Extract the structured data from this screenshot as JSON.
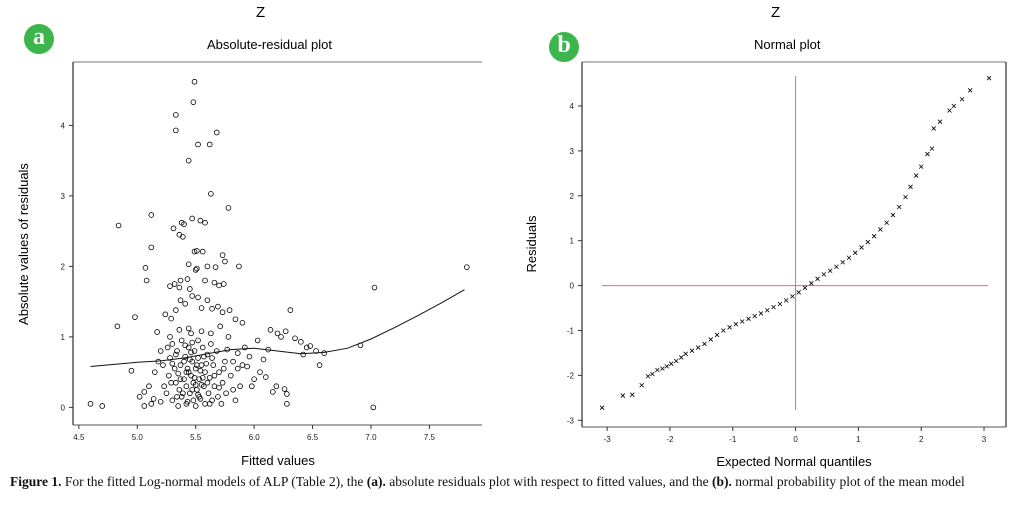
{
  "caption": {
    "label": "Figure 1.",
    "text_1": " For the fitted Log-normal models of ALP (Table 2), the ",
    "a_ref": "(a).",
    "text_2": " absolute residuals plot with respect to fitted values, and the ",
    "b_ref": "(b).",
    "text_3": " normal probability plot of the mean model"
  },
  "colors": {
    "badge": "#3cb54a",
    "refline": "#e07070",
    "marker": "#000000"
  },
  "chart_data": [
    {
      "type": "scatter",
      "panel_badge": "a",
      "supertitle": "Z",
      "title": "Absolute-residual plot",
      "xlabel": "Fitted values",
      "ylabel": "Absolute values of residuals",
      "xlim": [
        4.45,
        7.95
      ],
      "ylim": [
        -0.25,
        4.9
      ],
      "xticks": [
        "4.5",
        "5.0",
        "5.5",
        "6.0",
        "6.5",
        "7.0",
        "7.5"
      ],
      "xtick_values": [
        4.5,
        5.0,
        5.5,
        6.0,
        6.5,
        7.0,
        7.5
      ],
      "yticks": [
        "0",
        "1",
        "2",
        "3",
        "4"
      ],
      "ytick_values": [
        0,
        1,
        2,
        3,
        4
      ],
      "marker": "circle",
      "points": [
        [
          5.49,
          4.62
        ],
        [
          5.48,
          4.33
        ],
        [
          5.33,
          4.15
        ],
        [
          5.33,
          3.93
        ],
        [
          5.68,
          3.9
        ],
        [
          5.52,
          3.73
        ],
        [
          5.62,
          3.73
        ],
        [
          5.44,
          3.5
        ],
        [
          5.63,
          3.03
        ],
        [
          5.78,
          2.83
        ],
        [
          4.84,
          2.58
        ],
        [
          5.12,
          2.73
        ],
        [
          5.38,
          2.62
        ],
        [
          5.31,
          2.54
        ],
        [
          5.4,
          2.6
        ],
        [
          5.47,
          2.68
        ],
        [
          5.54,
          2.65
        ],
        [
          5.36,
          2.45
        ],
        [
          5.39,
          2.42
        ],
        [
          5.58,
          2.62
        ],
        [
          5.12,
          2.27
        ],
        [
          5.51,
          2.22
        ],
        [
          5.49,
          2.21
        ],
        [
          5.56,
          2.21
        ],
        [
          5.73,
          2.16
        ],
        [
          5.75,
          2.07
        ],
        [
          5.87,
          2.0
        ],
        [
          5.07,
          1.98
        ],
        [
          5.44,
          2.03
        ],
        [
          5.51,
          1.97
        ],
        [
          5.6,
          2.0
        ],
        [
          5.67,
          1.99
        ],
        [
          5.5,
          1.95
        ],
        [
          5.08,
          1.8
        ],
        [
          5.28,
          1.72
        ],
        [
          5.32,
          1.75
        ],
        [
          5.37,
          1.8
        ],
        [
          5.43,
          1.82
        ],
        [
          5.58,
          1.8
        ],
        [
          5.66,
          1.77
        ],
        [
          5.7,
          1.73
        ],
        [
          5.74,
          1.75
        ],
        [
          5.45,
          1.68
        ],
        [
          5.36,
          1.7
        ],
        [
          4.98,
          1.28
        ],
        [
          4.83,
          1.15
        ],
        [
          5.17,
          1.07
        ],
        [
          5.24,
          1.32
        ],
        [
          5.29,
          1.26
        ],
        [
          5.33,
          1.38
        ],
        [
          5.37,
          1.52
        ],
        [
          5.41,
          1.47
        ],
        [
          5.47,
          1.58
        ],
        [
          5.52,
          1.56
        ],
        [
          5.55,
          1.41
        ],
        [
          5.6,
          1.52
        ],
        [
          5.64,
          1.4
        ],
        [
          5.69,
          1.43
        ],
        [
          5.73,
          1.35
        ],
        [
          5.79,
          1.38
        ],
        [
          5.84,
          1.25
        ],
        [
          5.9,
          1.2
        ],
        [
          6.14,
          1.1
        ],
        [
          6.2,
          1.05
        ],
        [
          6.23,
          1.0
        ],
        [
          6.27,
          1.08
        ],
        [
          6.31,
          1.38
        ],
        [
          6.35,
          0.98
        ],
        [
          6.4,
          0.93
        ],
        [
          6.45,
          0.85
        ],
        [
          6.48,
          0.87
        ],
        [
          6.53,
          0.8
        ],
        [
          6.42,
          0.75
        ],
        [
          6.6,
          0.77
        ],
        [
          6.56,
          0.6
        ],
        [
          6.91,
          0.88
        ],
        [
          7.03,
          1.7
        ],
        [
          7.82,
          1.99
        ],
        [
          7.02,
          0.0
        ],
        [
          6.28,
          0.05
        ],
        [
          6.28,
          0.19
        ],
        [
          6.26,
          0.26
        ],
        [
          6.16,
          0.22
        ],
        [
          6.19,
          0.3
        ],
        [
          6.1,
          0.43
        ],
        [
          6.05,
          0.5
        ],
        [
          6.0,
          0.4
        ],
        [
          5.98,
          0.3
        ],
        [
          5.94,
          0.58
        ],
        [
          5.9,
          0.6
        ],
        [
          5.86,
          0.77
        ],
        [
          5.82,
          0.65
        ],
        [
          4.6,
          0.05
        ],
        [
          4.7,
          0.02
        ],
        [
          4.95,
          0.52
        ],
        [
          5.02,
          0.15
        ],
        [
          5.06,
          0.22
        ],
        [
          5.06,
          0.02
        ],
        [
          5.12,
          0.05
        ],
        [
          5.14,
          0.12
        ],
        [
          5.1,
          0.3
        ],
        [
          5.15,
          0.5
        ],
        [
          5.18,
          0.65
        ],
        [
          5.2,
          0.8
        ],
        [
          5.23,
          0.3
        ],
        [
          5.2,
          0.08
        ],
        [
          5.25,
          0.2
        ],
        [
          5.27,
          0.45
        ],
        [
          5.28,
          0.7
        ],
        [
          5.3,
          0.9
        ],
        [
          5.3,
          0.1
        ],
        [
          5.32,
          0.55
        ],
        [
          5.33,
          0.35
        ],
        [
          5.34,
          0.8
        ],
        [
          5.35,
          0.02
        ],
        [
          5.36,
          0.25
        ],
        [
          5.37,
          0.6
        ],
        [
          5.38,
          0.95
        ],
        [
          5.38,
          0.15
        ],
        [
          5.4,
          0.4
        ],
        [
          5.41,
          0.72
        ],
        [
          5.42,
          0.05
        ],
        [
          5.42,
          0.3
        ],
        [
          5.43,
          0.55
        ],
        [
          5.44,
          0.85
        ],
        [
          5.45,
          0.2
        ],
        [
          5.46,
          0.45
        ],
        [
          5.46,
          1.05
        ],
        [
          5.47,
          0.65
        ],
        [
          5.48,
          0.1
        ],
        [
          5.48,
          0.35
        ],
        [
          5.49,
          0.8
        ],
        [
          5.5,
          0.55
        ],
        [
          5.5,
          0.02
        ],
        [
          5.51,
          0.25
        ],
        [
          5.52,
          0.95
        ],
        [
          5.52,
          0.7
        ],
        [
          5.53,
          0.4
        ],
        [
          5.54,
          0.12
        ],
        [
          5.55,
          0.6
        ],
        [
          5.56,
          0.85
        ],
        [
          5.57,
          0.3
        ],
        [
          5.58,
          0.05
        ],
        [
          5.58,
          0.5
        ],
        [
          5.6,
          0.75
        ],
        [
          5.61,
          0.2
        ],
        [
          5.62,
          0.42
        ],
        [
          5.63,
          0.9
        ],
        [
          5.64,
          0.1
        ],
        [
          5.65,
          0.6
        ],
        [
          5.66,
          0.3
        ],
        [
          5.68,
          0.8
        ],
        [
          5.69,
          0.15
        ],
        [
          5.7,
          0.5
        ],
        [
          5.72,
          0.05
        ],
        [
          5.73,
          0.35
        ],
        [
          5.75,
          0.65
        ],
        [
          5.76,
          0.2
        ],
        [
          5.78,
          1.0
        ],
        [
          5.8,
          0.45
        ],
        [
          5.82,
          0.25
        ],
        [
          5.84,
          0.1
        ],
        [
          5.86,
          0.55
        ],
        [
          5.88,
          0.3
        ],
        [
          5.3,
          0.62
        ],
        [
          5.35,
          0.48
        ],
        [
          5.39,
          0.2
        ],
        [
          5.41,
          0.88
        ],
        [
          5.44,
          0.5
        ],
        [
          5.45,
          0.68
        ],
        [
          5.47,
          0.25
        ],
        [
          5.49,
          0.42
        ],
        [
          5.51,
          0.6
        ],
        [
          5.53,
          0.15
        ],
        [
          5.55,
          0.32
        ],
        [
          5.57,
          0.72
        ],
        [
          5.26,
          0.85
        ],
        [
          5.22,
          0.6
        ],
        [
          5.29,
          0.35
        ],
        [
          5.34,
          0.15
        ],
        [
          5.4,
          0.65
        ],
        [
          5.43,
          0.08
        ],
        [
          5.46,
          0.78
        ],
        [
          5.5,
          0.32
        ],
        [
          5.54,
          0.52
        ],
        [
          5.59,
          0.62
        ],
        [
          5.62,
          0.05
        ],
        [
          5.66,
          0.45
        ],
        [
          5.7,
          0.28
        ],
        [
          5.74,
          0.55
        ],
        [
          5.33,
          0.75
        ],
        [
          5.37,
          0.4
        ],
        [
          5.42,
          0.5
        ],
        [
          5.47,
          0.92
        ],
        [
          5.52,
          0.18
        ],
        [
          5.56,
          0.42
        ],
        [
          5.6,
          0.35
        ],
        [
          5.64,
          0.7
        ],
        [
          5.28,
          1.0
        ],
        [
          5.36,
          1.1
        ],
        [
          5.44,
          1.12
        ],
        [
          5.55,
          1.08
        ],
        [
          5.63,
          1.05
        ],
        [
          5.71,
          1.15
        ],
        [
          5.77,
          0.82
        ],
        [
          5.92,
          0.85
        ],
        [
          5.96,
          0.72
        ],
        [
          6.03,
          0.95
        ],
        [
          6.08,
          0.68
        ],
        [
          6.12,
          0.82
        ]
      ],
      "smooth_line": {
        "x": [
          4.6,
          4.8,
          5.0,
          5.2,
          5.4,
          5.6,
          5.8,
          6.0,
          6.2,
          6.4,
          6.6,
          6.8,
          7.0,
          7.2,
          7.4,
          7.6,
          7.8
        ],
        "y": [
          0.58,
          0.61,
          0.64,
          0.66,
          0.7,
          0.76,
          0.82,
          0.84,
          0.8,
          0.76,
          0.78,
          0.84,
          0.97,
          1.13,
          1.3,
          1.48,
          1.67
        ]
      }
    },
    {
      "type": "scatter",
      "panel_badge": "b",
      "supertitle": "Z",
      "title": "Normal plot",
      "xlabel": "Expected Normal quantiles",
      "ylabel": "Residuals",
      "xlim": [
        -3.4,
        3.35
      ],
      "ylim": [
        -3.15,
        4.98
      ],
      "xticks": [
        "-3",
        "-2",
        "-1",
        "0",
        "1",
        "2",
        "3"
      ],
      "xtick_values": [
        -3,
        -2,
        -1,
        0,
        1,
        2,
        3
      ],
      "yticks": [
        "-3",
        "-2",
        "-1",
        "0",
        "1",
        "2",
        "3",
        "4"
      ],
      "ytick_values": [
        -3,
        -2,
        -1,
        0,
        1,
        2,
        3,
        4
      ],
      "marker": "x",
      "reference_lines": {
        "vertical_x": 0,
        "horizontal_y": 0
      },
      "points": [
        [
          -3.08,
          -2.72
        ],
        [
          -2.75,
          -2.45
        ],
        [
          -2.6,
          -2.43
        ],
        [
          -2.45,
          -2.22
        ],
        [
          -2.35,
          -2.02
        ],
        [
          -2.28,
          -1.97
        ],
        [
          -2.2,
          -1.88
        ],
        [
          -2.12,
          -1.85
        ],
        [
          -2.05,
          -1.8
        ],
        [
          -1.98,
          -1.74
        ],
        [
          -1.9,
          -1.68
        ],
        [
          -1.82,
          -1.6
        ],
        [
          -1.75,
          -1.52
        ],
        [
          -1.65,
          -1.45
        ],
        [
          -1.55,
          -1.38
        ],
        [
          -1.45,
          -1.3
        ],
        [
          -1.35,
          -1.2
        ],
        [
          -1.25,
          -1.1
        ],
        [
          -1.15,
          -1.0
        ],
        [
          -1.05,
          -0.93
        ],
        [
          -0.95,
          -0.86
        ],
        [
          -0.85,
          -0.8
        ],
        [
          -0.75,
          -0.74
        ],
        [
          -0.65,
          -0.68
        ],
        [
          -0.55,
          -0.62
        ],
        [
          -0.45,
          -0.55
        ],
        [
          -0.35,
          -0.48
        ],
        [
          -0.25,
          -0.41
        ],
        [
          -0.15,
          -0.33
        ],
        [
          -0.05,
          -0.24
        ],
        [
          0.05,
          -0.15
        ],
        [
          0.15,
          -0.05
        ],
        [
          0.25,
          0.05
        ],
        [
          0.35,
          0.15
        ],
        [
          0.45,
          0.25
        ],
        [
          0.55,
          0.33
        ],
        [
          0.65,
          0.42
        ],
        [
          0.75,
          0.52
        ],
        [
          0.85,
          0.62
        ],
        [
          0.95,
          0.73
        ],
        [
          1.05,
          0.85
        ],
        [
          1.15,
          0.97
        ],
        [
          1.25,
          1.1
        ],
        [
          1.35,
          1.25
        ],
        [
          1.45,
          1.4
        ],
        [
          1.55,
          1.57
        ],
        [
          1.65,
          1.75
        ],
        [
          1.75,
          1.97
        ],
        [
          1.83,
          2.2
        ],
        [
          1.92,
          2.45
        ],
        [
          2.0,
          2.65
        ],
        [
          2.1,
          2.93
        ],
        [
          2.17,
          3.05
        ],
        [
          2.2,
          3.5
        ],
        [
          2.3,
          3.65
        ],
        [
          2.45,
          3.9
        ],
        [
          2.52,
          4.0
        ],
        [
          2.65,
          4.15
        ],
        [
          2.78,
          4.35
        ],
        [
          3.08,
          4.62
        ]
      ]
    }
  ]
}
